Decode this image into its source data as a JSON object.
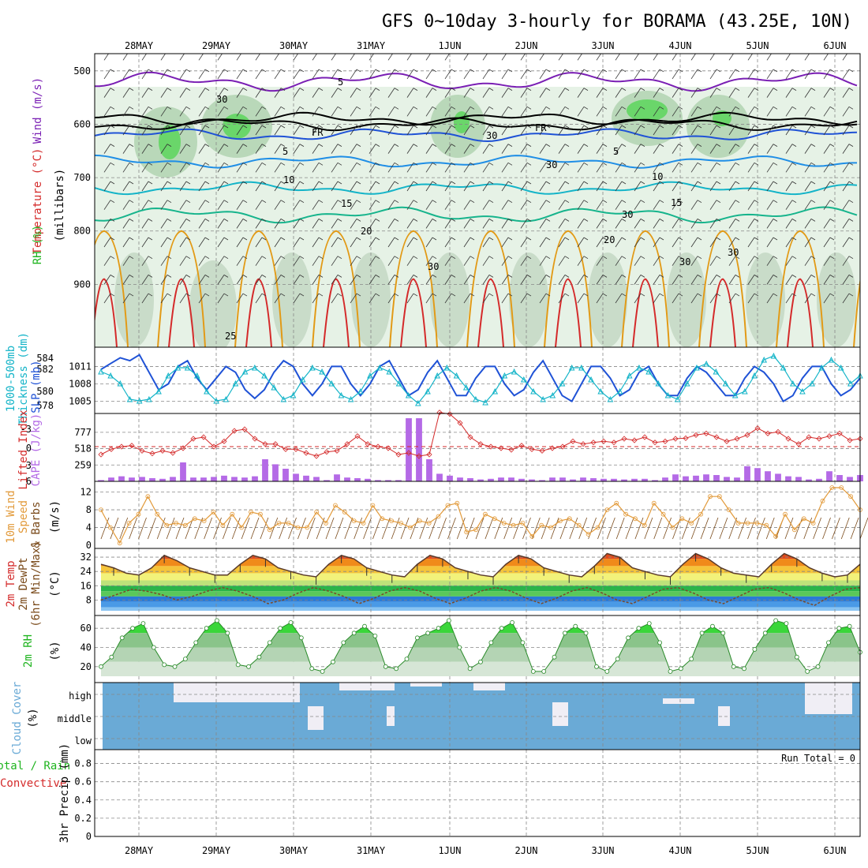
{
  "title": "GFS 0~10day 3-hourly for BORAMA (43.25E, 10N)",
  "dates": [
    "28MAY",
    "29MAY",
    "30MAY",
    "31MAY",
    "1JUN",
    "2JUN",
    "3JUN",
    "4JUN",
    "5JUN",
    "6JUN"
  ],
  "colors": {
    "frame": "#000000",
    "grid": "#888888",
    "rh_green": "#6ad66a",
    "temp_purple": "#7a1fb4",
    "temp_blue": "#1f52d6",
    "temp_cyan": "#14b4c8",
    "temp_teal": "#16b48c",
    "temp_orange": "#e29a16",
    "temp_red": "#d42a2a",
    "cloud": "#6aaad6",
    "cape": "#b46ae6",
    "wind": "#e29a3a"
  },
  "panel_labels": {
    "upper": {
      "wind": "Wind (m/s)",
      "temp": "Temperature (°C)",
      "rh": "RH (%)",
      "pressure": "(millibars)"
    },
    "slp": {
      "a": "1000-500mb",
      "b": "Thickness (dm)",
      "c": "SLP (mb)"
    },
    "cape": {
      "a": "Lifted Index",
      "b": "CAPE (J/kg)"
    },
    "wind": {
      "a": "10m Wind",
      "b": "Speed",
      "c": "& Barbs",
      "d": "(m/s)"
    },
    "temp2m": {
      "a": "2m Temp",
      "b": "2m DewPt",
      "c": "(6hr Min/Max)",
      "d": "(°C)"
    },
    "rh2m": {
      "a": "2m RH",
      "b": "(%)"
    },
    "cloud": {
      "a": "Cloud Cover",
      "b": "(%)"
    },
    "precip": {
      "a": "Total / Rain",
      "b": "Convective",
      "c": "3hr Precip (mm)"
    }
  },
  "run_total": "Run Total = 0",
  "contour_labels": [
    "5",
    "FR",
    "FR",
    "5",
    "5",
    "10",
    "10",
    "15",
    "15",
    "20",
    "20",
    "25",
    "30",
    "30",
    "30",
    "30",
    "30",
    "30",
    "30"
  ],
  "cloud_levels": [
    "high",
    "middle",
    "low"
  ],
  "chart_data": [
    {
      "type": "line",
      "name": "upper-air cross section",
      "ylabel": "(millibars)",
      "y_ticks": [
        "500",
        "600",
        "700",
        "800",
        "900"
      ],
      "ylim": [
        1000,
        450
      ],
      "isotherms_c": [
        -5,
        0,
        5,
        10,
        15,
        20,
        25
      ],
      "wind_barbs": true
    },
    {
      "type": "line",
      "name": "slp-thickness",
      "y_ticks_left": [
        "584",
        "582",
        "580",
        "578"
      ],
      "y_ticks_right": [
        "1011",
        "1008",
        "1005"
      ],
      "series": [
        {
          "name": "SLP (mb)",
          "values": [
            1010.5,
            1011.5,
            1012.5,
            1012,
            1013,
            1010,
            1007,
            1008,
            1011,
            1012,
            1009,
            1007,
            1009,
            1011,
            1010,
            1007,
            1005.5,
            1007,
            1010,
            1012,
            1011,
            1008,
            1006,
            1008,
            1011,
            1011,
            1008,
            1006,
            1008,
            1011,
            1012,
            1009,
            1006,
            1007,
            1010,
            1012,
            1009,
            1006,
            1006,
            1009,
            1011,
            1011,
            1008,
            1006,
            1007,
            1010,
            1012,
            1009,
            1006,
            1005,
            1008,
            1011,
            1011,
            1009,
            1006,
            1007,
            1010,
            1011,
            1008,
            1006,
            1006,
            1009,
            1011,
            1010,
            1008,
            1006,
            1006,
            1009,
            1011,
            1010,
            1008,
            1005,
            1006,
            1009,
            1011,
            1011,
            1008,
            1006,
            1007,
            1009
          ]
        },
        {
          "name": "1000-500mb Thickness (dm)",
          "values": [
            582.5,
            582,
            581,
            579,
            578.8,
            579,
            580,
            582,
            583,
            583,
            582,
            580,
            578.8,
            579,
            581,
            582.5,
            583,
            582,
            580.5,
            579,
            579.5,
            581.5,
            583,
            582.5,
            581,
            579.5,
            579,
            580,
            582,
            583,
            582.5,
            581,
            579.5,
            578.5,
            580,
            582,
            583,
            582,
            580.5,
            579,
            578.6,
            580,
            582,
            582.5,
            581.5,
            580,
            579,
            579.5,
            581,
            583,
            583,
            581.5,
            580,
            579,
            580,
            582,
            583,
            582.5,
            581,
            579.5,
            579,
            581,
            583,
            583.5,
            582.5,
            581,
            579.5,
            580,
            582,
            584,
            584.5,
            583,
            581,
            580,
            581,
            583,
            584,
            583,
            581,
            582
          ]
        }
      ]
    },
    {
      "type": "bar",
      "name": "cape-lifted-index",
      "y_ticks_left": [
        "-3",
        "0",
        "3",
        "6"
      ],
      "y_ticks_right": [
        "777",
        "518",
        "259"
      ],
      "series": [
        {
          "name": "CAPE (J/kg)",
          "values": [
            20,
            60,
            80,
            60,
            70,
            50,
            40,
            70,
            300,
            60,
            60,
            70,
            90,
            70,
            60,
            80,
            350,
            270,
            200,
            120,
            90,
            70,
            20,
            110,
            60,
            50,
            40,
            20,
            20,
            20,
            1500,
            1500,
            350,
            120,
            90,
            60,
            50,
            30,
            40,
            60,
            60,
            40,
            30,
            20,
            60,
            60,
            30,
            60,
            50,
            40,
            40,
            30,
            40,
            40,
            20,
            60,
            110,
            80,
            90,
            110,
            100,
            70,
            60,
            240,
            210,
            160,
            120,
            80,
            70,
            30,
            40,
            160,
            100,
            70,
            100
          ]
        },
        {
          "name": "Lifted Index",
          "values": [
            1.5,
            0.5,
            0,
            -0.2,
            0.8,
            1.3,
            0.8,
            1.2,
            0.3,
            -1.5,
            -1.8,
            0,
            -1,
            -3,
            -3.3,
            -1.5,
            -0.5,
            -0.5,
            0.5,
            0.5,
            1.2,
            1.8,
            1,
            0.8,
            -0.5,
            -2,
            -0.5,
            0,
            0.3,
            1.5,
            1.2,
            1.8,
            1.5,
            -6.5,
            -6.2,
            -4.5,
            -1.8,
            -0.5,
            0,
            0.3,
            0.6,
            -0.2,
            0.5,
            0.8,
            0.3,
            0,
            -1,
            -0.5,
            -0.8,
            -1,
            -0.8,
            -1.5,
            -1.2,
            -1.8,
            -0.8,
            -1,
            -1.5,
            -1.6,
            -2.2,
            -2.5,
            -1.8,
            -1,
            -1.5,
            -2.2,
            -3.5,
            -2.5,
            -2.8,
            -1.5,
            -0.5,
            -1.8,
            -1.5,
            -2,
            -2.5,
            -1.2,
            -1.5
          ]
        }
      ]
    },
    {
      "type": "line",
      "name": "10m-wind",
      "y_ticks": [
        "12",
        "8",
        "4",
        "0"
      ],
      "ylim": [
        0,
        13
      ],
      "series": [
        {
          "name": "Speed (m/s)",
          "values": [
            8,
            4,
            0.5,
            5,
            7,
            11,
            7,
            4.5,
            5,
            4.5,
            6,
            5.5,
            7.5,
            4.5,
            7,
            4,
            7.5,
            7,
            3.5,
            5,
            5,
            4,
            4,
            7.5,
            5,
            9,
            7.5,
            5.5,
            5,
            9,
            6,
            5.5,
            5,
            4,
            5.5,
            5,
            6.5,
            9,
            9.5,
            3,
            3.5,
            7,
            6,
            5,
            4.5,
            5,
            2,
            4.5,
            4,
            5.5,
            6,
            4.5,
            2.5,
            4,
            8,
            9.5,
            7,
            6,
            4.5,
            9.5,
            7,
            4,
            6,
            5,
            7,
            11,
            11,
            8,
            5,
            5,
            5,
            4.5,
            2,
            7,
            3.5,
            6,
            5,
            10,
            13,
            13,
            11,
            8
          ]
        }
      ]
    },
    {
      "type": "area",
      "name": "2m-temperature",
      "y_ticks": [
        "32",
        "24",
        "16",
        "8"
      ],
      "series": [
        {
          "name": "2m Temp",
          "values": [
            28,
            26,
            23,
            22,
            26,
            33,
            30,
            26,
            24,
            22,
            22,
            28,
            33,
            31,
            26,
            24,
            22,
            21,
            28,
            33,
            31,
            26,
            24,
            22,
            21,
            28,
            33,
            31,
            26,
            24,
            22,
            21,
            28,
            33,
            31,
            26,
            24,
            22,
            21,
            27,
            34,
            32,
            26,
            24,
            22,
            21,
            28,
            34,
            31,
            26,
            23,
            22,
            21,
            28,
            34,
            31,
            26,
            23,
            21,
            22,
            28
          ]
        },
        {
          "name": "2m DewPt",
          "values": [
            8,
            11,
            14,
            13,
            11,
            8,
            10,
            13,
            15,
            13,
            10,
            6,
            8,
            12,
            15,
            13,
            10,
            6,
            9,
            13,
            15,
            13,
            9,
            6,
            9,
            13,
            15,
            13,
            9,
            6,
            9,
            13,
            15,
            12,
            8,
            6,
            10,
            14,
            15,
            12,
            8,
            6,
            10,
            14,
            15,
            12,
            8,
            5,
            10,
            14,
            15
          ]
        }
      ]
    },
    {
      "type": "area",
      "name": "2m-rh",
      "y_ticks": [
        "60",
        "40",
        "20"
      ],
      "series": [
        {
          "name": "2m RH",
          "values": [
            20,
            30,
            50,
            60,
            65,
            40,
            22,
            20,
            28,
            45,
            60,
            68,
            55,
            22,
            20,
            30,
            45,
            60,
            66,
            50,
            18,
            15,
            25,
            45,
            55,
            62,
            52,
            20,
            18,
            28,
            50,
            55,
            60,
            68,
            40,
            18,
            25,
            45,
            60,
            66,
            45,
            15,
            15,
            30,
            55,
            62,
            55,
            20,
            15,
            28,
            50,
            60,
            65,
            45,
            15,
            18,
            28,
            55,
            62,
            55,
            20,
            18,
            38,
            55,
            68,
            65,
            30,
            15,
            20,
            45,
            60,
            62,
            35
          ]
        }
      ]
    },
    {
      "type": "heatmap",
      "name": "cloud-cover",
      "rows": [
        "high",
        "middle",
        "low"
      ]
    },
    {
      "type": "bar",
      "name": "3hr-precip",
      "y_ticks": [
        "0.8",
        "0.6",
        "0.4",
        "0.2",
        "0"
      ],
      "ylim": [
        0,
        0.9
      ],
      "values": []
    }
  ]
}
